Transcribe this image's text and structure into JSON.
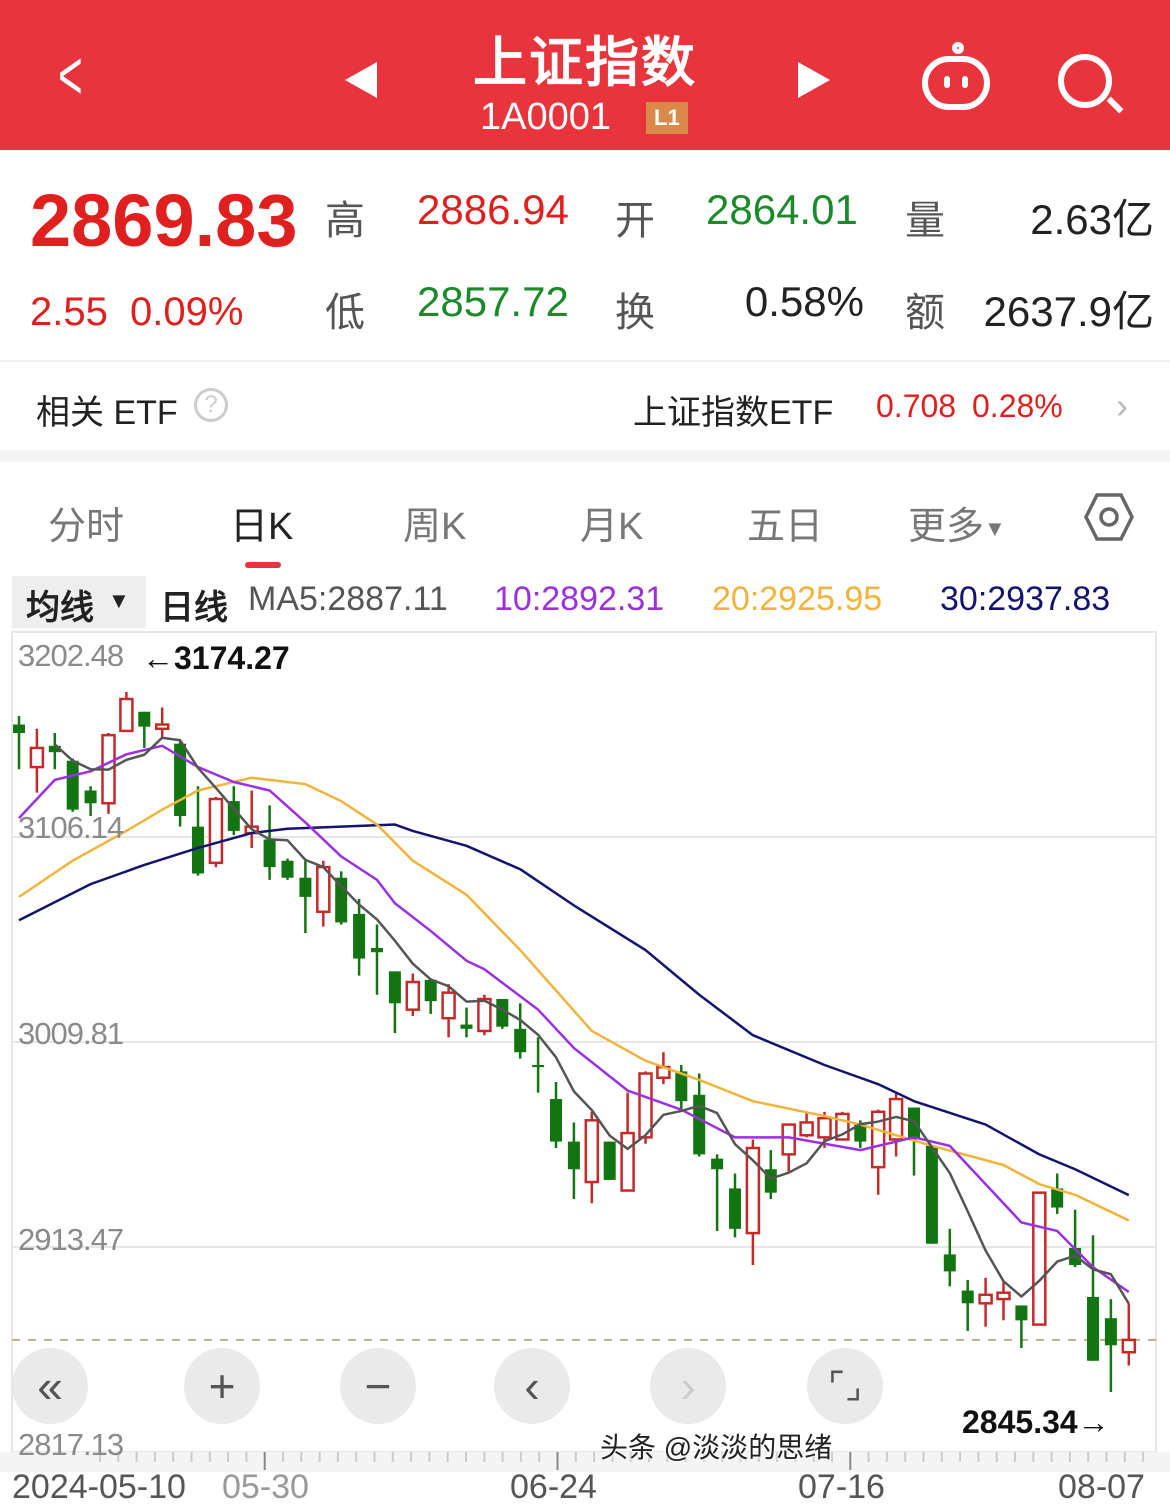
{
  "header": {
    "title": "上证指数",
    "code": "1A0001",
    "level_badge": "L1",
    "icons": [
      "back-chevron-icon",
      "prev-triangle-icon",
      "next-triangle-icon",
      "robot-icon",
      "search-icon"
    ]
  },
  "quote": {
    "price": "2869.83",
    "change": "2.55",
    "change_pct": "0.09%",
    "high_label": "高",
    "high": "2886.94",
    "open_label": "开",
    "open": "2864.01",
    "volume_label": "量",
    "volume": "2.63亿",
    "low_label": "低",
    "low": "2857.72",
    "turnover_label": "换",
    "turnover": "0.58%",
    "amount_label": "额",
    "amount": "2637.9亿"
  },
  "etf": {
    "label": "相关 ETF",
    "help_icon": "question-circle-icon",
    "name": "上证指数ETF",
    "price": "0.708",
    "pct": "0.28%"
  },
  "tabs": [
    {
      "label": "分时"
    },
    {
      "label": "日K",
      "selected": true
    },
    {
      "label": "周K"
    },
    {
      "label": "月K"
    },
    {
      "label": "五日"
    },
    {
      "label": "更多"
    }
  ],
  "ma_bar": {
    "dropdown": "均线",
    "period": "日线",
    "ma5": "MA5:2887.11",
    "ma10": "10:2892.31",
    "ma20": "20:2925.95",
    "ma30": "30:2937.83"
  },
  "colors": {
    "brand_red": "#e8343c",
    "up": "#c42a2a",
    "down": "#127512",
    "ma5": "#555555",
    "ma10": "#9b30e0",
    "ma20": "#f0b43c",
    "ma30": "#14146e"
  },
  "controls": [
    "double-chevron-left-icon",
    "zoom-in-icon",
    "zoom-out-icon",
    "chevron-left-icon",
    "chevron-right-icon",
    "fullscreen-icon"
  ],
  "watermark": "头条 @淡淡的思绪",
  "chart_data": {
    "type": "candlestick",
    "ylim": [
      2817.13,
      3202.48
    ],
    "y_ticks": [
      "3202.48",
      "3106.14",
      "3009.81",
      "2913.47",
      "2817.13"
    ],
    "x_ticks": [
      "2024-05-10",
      "05-30",
      "06-24",
      "07-16",
      "08-07"
    ],
    "max_annotation": "←3174.27",
    "min_annotation": "2845.34→",
    "last_price": 2869.83,
    "candles": [
      [
        3159,
        3163,
        3138,
        3155
      ],
      [
        3139,
        3157,
        3127,
        3148
      ],
      [
        3149,
        3155,
        3138,
        3146
      ],
      [
        3142,
        3143,
        3118,
        3119
      ],
      [
        3128,
        3130,
        3116,
        3122
      ],
      [
        3122,
        3155,
        3117,
        3154
      ],
      [
        3156,
        3174.27,
        3156,
        3171
      ],
      [
        3165,
        3165,
        3148,
        3158
      ],
      [
        3157,
        3167,
        3153,
        3159
      ],
      [
        3150,
        3151,
        3111,
        3116
      ],
      [
        3111,
        3130,
        3088,
        3089
      ],
      [
        3094,
        3125,
        3092,
        3124
      ],
      [
        3123,
        3130,
        3107,
        3109
      ],
      [
        3108,
        3128,
        3101,
        3111
      ],
      [
        3105,
        3121,
        3086,
        3092
      ],
      [
        3095,
        3096,
        3086,
        3087
      ],
      [
        3087,
        3095,
        3061,
        3078
      ],
      [
        3071,
        3095,
        3064,
        3092
      ],
      [
        3087,
        3090,
        3065,
        3066
      ],
      [
        3070,
        3077,
        3041,
        3049
      ],
      [
        3054,
        3065,
        3032,
        3052
      ],
      [
        3043,
        3043,
        3014,
        3028
      ],
      [
        3025,
        3042,
        3022,
        3038
      ],
      [
        3039,
        3039,
        3023,
        3029
      ],
      [
        3021,
        3037,
        3012,
        3033
      ],
      [
        3018,
        3026,
        3012,
        3016
      ],
      [
        3015,
        3032,
        3013,
        3030
      ],
      [
        3030,
        3030,
        3016,
        3017
      ],
      [
        3016,
        3028,
        3002,
        3005
      ],
      [
        2999,
        3012,
        2986,
        2998
      ],
      [
        2983,
        2991,
        2960,
        2963
      ],
      [
        2963,
        2972,
        2936,
        2950
      ],
      [
        2944,
        2977,
        2934,
        2973
      ],
      [
        2963,
        2963,
        2945,
        2945
      ],
      [
        2940,
        2986,
        2940,
        2967
      ],
      [
        2965,
        2996,
        2962,
        2995
      ],
      [
        2993,
        3005,
        2990,
        2998
      ],
      [
        2996,
        2999,
        2977,
        2982
      ],
      [
        2985,
        2995,
        2956,
        2957
      ],
      [
        2955,
        2957,
        2921,
        2950
      ],
      [
        2941,
        2948,
        2918,
        2922
      ],
      [
        2920,
        2964,
        2905,
        2960
      ],
      [
        2950,
        2959,
        2936,
        2939
      ],
      [
        2957,
        2971,
        2949,
        2971
      ],
      [
        2966,
        2977,
        2965,
        2972
      ],
      [
        2965,
        2977,
        2960,
        2974
      ],
      [
        2964,
        2977,
        2964,
        2976
      ],
      [
        2971,
        2973,
        2960,
        2963
      ],
      [
        2951,
        2978,
        2938,
        2977
      ],
      [
        2964,
        2986,
        2956,
        2983
      ],
      [
        2979,
        2979,
        2947,
        2964
      ],
      [
        2961,
        2961,
        2915,
        2915
      ],
      [
        2910,
        2922,
        2895,
        2902
      ],
      [
        2893,
        2898,
        2874,
        2887
      ],
      [
        2887,
        2899,
        2876,
        2891
      ],
      [
        2889,
        2897,
        2879,
        2892
      ],
      [
        2886,
        2886,
        2866,
        2879
      ],
      [
        2877,
        2939,
        2877,
        2939
      ],
      [
        2941,
        2948,
        2929,
        2932
      ],
      [
        2913,
        2931,
        2904,
        2905
      ],
      [
        2890,
        2919,
        2860,
        2860
      ],
      [
        2880,
        2889,
        2845.34,
        2867.28
      ],
      [
        2864.01,
        2886.94,
        2857.72,
        2869.83
      ]
    ],
    "ma10_points": [
      [
        0,
        3115
      ],
      [
        2,
        3133
      ],
      [
        4,
        3137
      ],
      [
        6,
        3145
      ],
      [
        8,
        3149
      ],
      [
        10,
        3139
      ],
      [
        12,
        3132
      ],
      [
        14,
        3128
      ],
      [
        16,
        3113
      ],
      [
        18,
        3097
      ],
      [
        20,
        3086
      ],
      [
        21,
        3075
      ],
      [
        23,
        3062
      ],
      [
        25,
        3048
      ],
      [
        26,
        3044
      ],
      [
        29,
        3025
      ],
      [
        31,
        3007
      ],
      [
        34,
        2987
      ],
      [
        37,
        2978
      ],
      [
        40,
        2965
      ],
      [
        43,
        2965
      ],
      [
        47,
        2959
      ],
      [
        50,
        2965
      ],
      [
        52,
        2961
      ],
      [
        56,
        2925
      ],
      [
        58,
        2921
      ],
      [
        60,
        2904
      ],
      [
        62,
        2892.31
      ]
    ],
    "ma20_points": [
      [
        0,
        3078
      ],
      [
        3,
        3095
      ],
      [
        6,
        3109
      ],
      [
        8,
        3119
      ],
      [
        10,
        3128
      ],
      [
        13,
        3134
      ],
      [
        16,
        3131
      ],
      [
        18,
        3123
      ],
      [
        20,
        3112
      ],
      [
        22,
        3095
      ],
      [
        25,
        3079
      ],
      [
        28,
        3053
      ],
      [
        30,
        3034
      ],
      [
        32,
        3015
      ],
      [
        35,
        3001
      ],
      [
        38,
        2992
      ],
      [
        41,
        2982
      ],
      [
        45,
        2975
      ],
      [
        47,
        2971
      ],
      [
        49,
        2966
      ],
      [
        51,
        2961
      ],
      [
        55,
        2952
      ],
      [
        57,
        2943
      ],
      [
        59,
        2938
      ],
      [
        62,
        2925.95
      ]
    ],
    "ma30_points": [
      [
        0,
        3067
      ],
      [
        4,
        3084
      ],
      [
        7,
        3093
      ],
      [
        10,
        3101
      ],
      [
        13,
        3108
      ],
      [
        15,
        3110
      ],
      [
        18,
        3111
      ],
      [
        21,
        3112
      ],
      [
        22,
        3109
      ],
      [
        25,
        3102
      ],
      [
        28,
        3091
      ],
      [
        31,
        3074
      ],
      [
        35,
        3053
      ],
      [
        38,
        3032
      ],
      [
        41,
        3013
      ],
      [
        45,
        2999
      ],
      [
        48,
        2990
      ],
      [
        50,
        2982
      ],
      [
        54,
        2971
      ],
      [
        57,
        2957
      ],
      [
        59,
        2950
      ],
      [
        62,
        2937.83
      ]
    ]
  }
}
